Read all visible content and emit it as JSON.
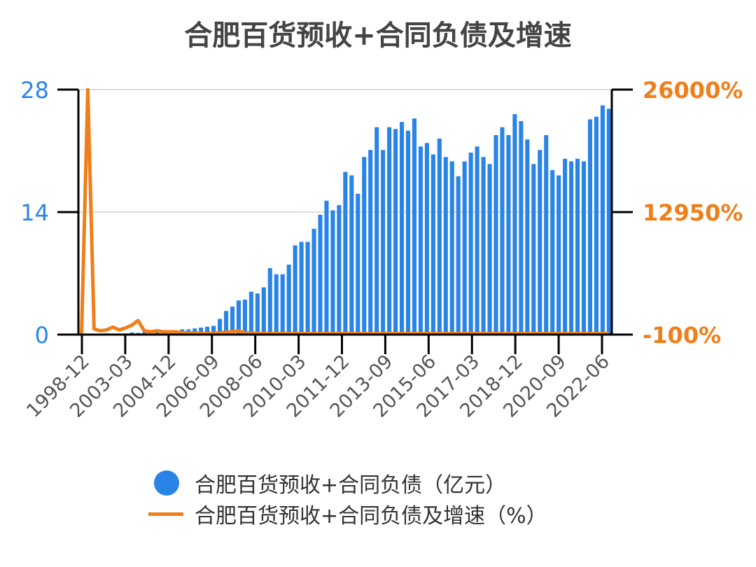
{
  "chart_data": {
    "title": "合肥百货预收+合同负债及增速",
    "type": "bar",
    "colors": {
      "bar": "#2a84e6",
      "line": "#ef7f1a",
      "left_axis": "#2a84e6",
      "right_axis": "#ef7f1a",
      "axis": "#000000",
      "grid": "#dddddd",
      "tick_label": "#555555"
    },
    "x_tick_labels": [
      "1998-12",
      "2003-03",
      "2004-12",
      "2006-09",
      "2008-06",
      "2010-03",
      "2011-12",
      "2013-09",
      "2015-06",
      "2017-03",
      "2018-12",
      "2020-09",
      "2022-06"
    ],
    "y_left": {
      "ylim": [
        0,
        28
      ],
      "ticks": [
        "0",
        "14",
        "28"
      ]
    },
    "y_right": {
      "ylim": [
        -100,
        26000
      ],
      "ticks": [
        "-100%",
        "12950%",
        "26000%"
      ]
    },
    "grid": true,
    "legend_position": "bottom",
    "series": [
      {
        "name": "合肥百货预收+合同负债（亿元）",
        "type": "bar",
        "axis": "left",
        "values": [
          0.05,
          0.08,
          0.12,
          0.1,
          0.15,
          0.12,
          0.13,
          0.14,
          0.25,
          0.2,
          0.3,
          0.35,
          0.3,
          0.4,
          0.45,
          0.5,
          0.6,
          0.6,
          0.7,
          0.8,
          0.9,
          1.0,
          1.8,
          2.7,
          3.2,
          3.9,
          4.0,
          4.9,
          4.7,
          5.4,
          7.6,
          6.9,
          6.9,
          8.0,
          10.2,
          10.6,
          10.6,
          12.1,
          13.7,
          15.3,
          14.2,
          14.8,
          18.6,
          18.2,
          16.1,
          20.3,
          21.1,
          23.7,
          21.1,
          23.7,
          23.5,
          24.3,
          23.3,
          24.7,
          21.5,
          21.9,
          20.6,
          22.4,
          20.3,
          19.8,
          18.1,
          19.8,
          20.8,
          21.5,
          20.3,
          19.5,
          22.8,
          23.7,
          22.8,
          25.2,
          24.4,
          22.3,
          19.5,
          21.1,
          22.8,
          18.8,
          18.2,
          20.1,
          19.8,
          20.1,
          19.8,
          24.6,
          24.9,
          26.2,
          25.8
        ]
      },
      {
        "name": "合肥百货预收+合同负债及增速（%）",
        "type": "line",
        "axis": "right",
        "values": [
          -100,
          26000,
          500,
          300,
          400,
          700,
          400,
          600,
          900,
          1400,
          300,
          200,
          300,
          200,
          200,
          200,
          100,
          100,
          50,
          30,
          30,
          20,
          100,
          150,
          200,
          300,
          100,
          50,
          30,
          10,
          10,
          10,
          10,
          10,
          10,
          10,
          10,
          10,
          10,
          10,
          10,
          10,
          10,
          10,
          10,
          10,
          10,
          10,
          10,
          10,
          10,
          10,
          10,
          10,
          10,
          10,
          10,
          10,
          10,
          10,
          10,
          10,
          10,
          10,
          10,
          10,
          10,
          10,
          10,
          10,
          10,
          10,
          10,
          10,
          10,
          10,
          10,
          10,
          10,
          10,
          10,
          10,
          10,
          10,
          10
        ]
      }
    ]
  }
}
